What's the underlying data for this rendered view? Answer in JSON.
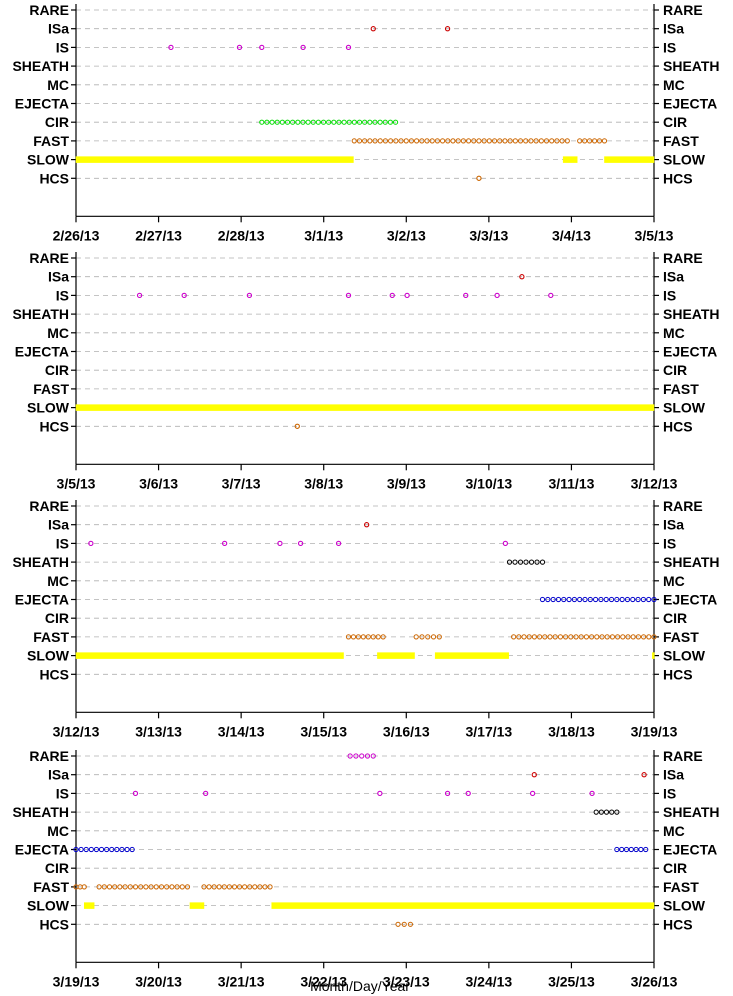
{
  "chart_data": {
    "type": "scatter",
    "xlabel": "Month/Day/Year",
    "y_categories": [
      "RARE",
      "ISa",
      "IS",
      "SHEATH",
      "MC",
      "EJECTA",
      "CIR",
      "FAST",
      "SLOW",
      "HCS"
    ],
    "grid": "dashed horizontal lines at each category",
    "series_colors": {
      "RARE": "#cc00cc",
      "ISa": "#cc0000",
      "IS": "#cc00cc",
      "SHEATH": "#000000",
      "MC": "#000000",
      "EJECTA": "#0000cc",
      "CIR": "#00dd00",
      "FAST": "#cc6600",
      "SLOW": "#ffff00",
      "HCS": "#cc6600"
    },
    "panels": [
      {
        "xlim": [
          0,
          7
        ],
        "x_tick_labels": [
          "2/26/13",
          "2/27/13",
          "2/28/13",
          "3/1/13",
          "3/2/13",
          "3/3/13",
          "3/4/13",
          "3/5/13"
        ],
        "points": {
          "ISa": [
            3.6,
            4.5
          ],
          "IS": [
            1.15,
            1.98,
            2.25,
            2.75,
            3.3
          ],
          "HCS": [
            4.88
          ]
        },
        "intervals": {
          "CIR": [
            [
              2.25,
              3.87
            ]
          ],
          "FAST": [
            [
              3.37,
              5.95
            ],
            [
              6.1,
              6.4
            ]
          ],
          "SLOW": [
            [
              0,
              3.36
            ],
            [
              5.9,
              6.07
            ],
            [
              6.4,
              7
            ]
          ]
        }
      },
      {
        "xlim": [
          0,
          7
        ],
        "x_tick_labels": [
          "3/5/13",
          "3/6/13",
          "3/7/13",
          "3/8/13",
          "3/9/13",
          "3/10/13",
          "3/11/13",
          "3/12/13"
        ],
        "points": {
          "ISa": [
            5.4
          ],
          "IS": [
            0.77,
            1.31,
            2.1,
            3.3,
            3.83,
            4.01,
            4.72,
            5.1,
            5.75
          ],
          "HCS": [
            2.68
          ]
        },
        "intervals": {
          "SLOW": [
            [
              0,
              7
            ]
          ]
        }
      },
      {
        "xlim": [
          0,
          7
        ],
        "x_tick_labels": [
          "3/12/13",
          "3/13/13",
          "3/14/13",
          "3/15/13",
          "3/16/13",
          "3/17/13",
          "3/18/13",
          "3/19/13"
        ],
        "points": {
          "ISa": [
            3.52
          ],
          "IS": [
            0.18,
            1.8,
            2.47,
            2.72,
            3.18,
            5.2
          ]
        },
        "intervals": {
          "SHEATH": [
            [
              5.25,
              5.65
            ]
          ],
          "EJECTA": [
            [
              5.65,
              7
            ]
          ],
          "FAST": [
            [
              3.3,
              3.72
            ],
            [
              4.12,
              4.4
            ],
            [
              5.3,
              7
            ]
          ],
          "SLOW": [
            [
              0,
              3.24
            ],
            [
              3.65,
              4.1
            ],
            [
              4.35,
              5.24
            ],
            [
              6.98,
              7
            ]
          ]
        }
      },
      {
        "xlim": [
          0,
          7
        ],
        "x_tick_labels": [
          "3/19/13",
          "3/20/13",
          "3/21/13",
          "3/22/13",
          "3/23/13",
          "3/24/13",
          "3/25/13",
          "3/26/13"
        ],
        "points": {
          "ISa": [
            5.55,
            6.88
          ],
          "IS": [
            0.72,
            1.57,
            3.68,
            4.5,
            4.75,
            5.53,
            6.25
          ]
        },
        "intervals": {
          "RARE": [
            [
              3.32,
              3.6
            ]
          ],
          "SHEATH": [
            [
              6.3,
              6.55
            ]
          ],
          "EJECTA": [
            [
              0,
              0.68
            ],
            [
              6.55,
              6.9
            ]
          ],
          "FAST": [
            [
              0,
              0.1
            ],
            [
              0.28,
              1.35
            ],
            [
              1.55,
              2.35
            ]
          ],
          "SLOW": [
            [
              0.1,
              0.22
            ],
            [
              1.38,
              1.55
            ],
            [
              2.37,
              7
            ]
          ],
          "HCS": [
            [
              3.9,
              4.05
            ]
          ]
        }
      }
    ]
  }
}
